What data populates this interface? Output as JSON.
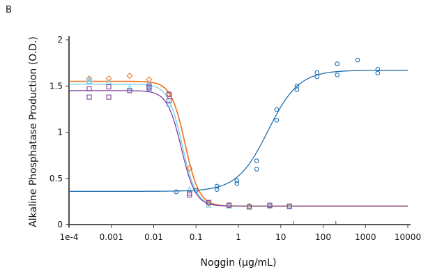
{
  "panel_label": "B",
  "chart_data": {
    "type": "scatter",
    "xlabel": "Noggin (µg/mL)",
    "ylabel": "Alkaline Phosphatase Production (O.D.)",
    "xscale": "log",
    "xlim": [
      0.0001,
      10000
    ],
    "ylim": [
      0,
      2
    ],
    "xticks": [
      "1e-4",
      "0.001",
      "0.01",
      "0.1",
      "1",
      "10",
      "100",
      "1000",
      "10000"
    ],
    "xtick_values": [
      0.0001,
      0.001,
      0.01,
      0.1,
      1,
      10,
      100,
      1000,
      10000
    ],
    "x_minor_ticks": [
      20,
      200
    ],
    "yticks": [
      "0",
      "0.5",
      "1",
      "1.5",
      "2"
    ],
    "ytick_values": [
      0,
      0.5,
      1,
      1.5,
      2
    ],
    "grid": false,
    "legend": "none",
    "series": [
      {
        "marker": "circle",
        "color": "#1f6fb0",
        "fit": {
          "bottom": 0.36,
          "top": 1.67,
          "ec50": 5,
          "hill": 1.2
        },
        "points": [
          [
            0.034,
            0.355
          ],
          [
            0.1,
            0.37
          ],
          [
            0.31,
            0.415
          ],
          [
            0.31,
            0.38
          ],
          [
            0.92,
            0.475
          ],
          [
            0.92,
            0.445
          ],
          [
            2.7,
            0.69
          ],
          [
            2.7,
            0.6
          ],
          [
            8,
            1.245
          ],
          [
            8,
            1.13
          ],
          [
            24,
            1.5
          ],
          [
            24,
            1.46
          ],
          [
            72,
            1.645
          ],
          [
            72,
            1.6
          ],
          [
            215,
            1.74
          ],
          [
            215,
            1.62
          ],
          [
            650,
            1.78
          ],
          [
            1950,
            1.68
          ],
          [
            1950,
            1.64
          ]
        ]
      },
      {
        "marker": "diamond",
        "color": "#f07a2a",
        "fit": {
          "bottom": 0.2,
          "top": 1.55,
          "ec50": 0.055,
          "hill": -2.6
        },
        "points": [
          [
            0.0003,
            1.58
          ],
          [
            0.00087,
            1.58
          ],
          [
            0.0027,
            1.61
          ],
          [
            0.0078,
            1.57
          ],
          [
            0.023,
            1.41
          ],
          [
            0.07,
            0.61
          ],
          [
            0.2,
            0.23
          ],
          [
            0.6,
            0.21
          ],
          [
            1.8,
            0.2
          ],
          [
            5.5,
            0.2
          ],
          [
            16,
            0.2
          ]
        ]
      },
      {
        "marker": "triangle",
        "color": "#6fcff0",
        "fit": {
          "bottom": 0.2,
          "top": 1.52,
          "ec50": 0.047,
          "hill": -2.6
        },
        "points": [
          [
            0.0003,
            1.57
          ],
          [
            0.0003,
            1.55
          ],
          [
            0.00087,
            1.54
          ],
          [
            0.0027,
            1.48
          ],
          [
            0.0078,
            1.47
          ],
          [
            0.0078,
            1.52
          ],
          [
            0.023,
            1.3
          ],
          [
            0.07,
            0.38
          ],
          [
            0.2,
            0.21
          ],
          [
            0.6,
            0.2
          ],
          [
            1.8,
            0.19
          ],
          [
            5.5,
            0.2
          ],
          [
            16,
            0.19
          ]
        ]
      },
      {
        "marker": "square",
        "color": "#7b3f98",
        "fit": {
          "bottom": 0.2,
          "top": 1.45,
          "ec50": 0.045,
          "hill": -2.6
        },
        "points": [
          [
            0.0003,
            1.47
          ],
          [
            0.0003,
            1.38
          ],
          [
            0.00087,
            1.49
          ],
          [
            0.00087,
            1.38
          ],
          [
            0.0027,
            1.45
          ],
          [
            0.0078,
            1.5
          ],
          [
            0.0078,
            1.48
          ],
          [
            0.023,
            1.41
          ],
          [
            0.023,
            1.34
          ],
          [
            0.07,
            0.34
          ],
          [
            0.07,
            0.32
          ],
          [
            0.2,
            0.24
          ],
          [
            0.6,
            0.21
          ],
          [
            1.8,
            0.19
          ],
          [
            5.5,
            0.21
          ],
          [
            16,
            0.2
          ]
        ]
      }
    ]
  }
}
